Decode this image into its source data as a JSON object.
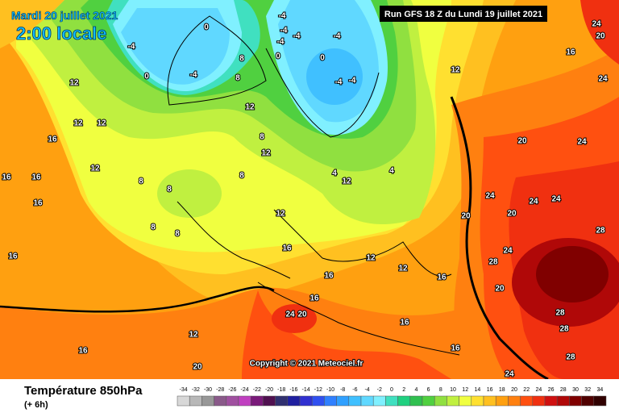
{
  "header": {
    "date": "Mardi 20 juillet 2021",
    "time": "2:00 locale",
    "run": "Run GFS 18 Z du Lundi 19 juillet 2021",
    "copyright": "Copyright © 2021 Meteociel.fr"
  },
  "legend": {
    "title": "Température 850hPa",
    "subtitle": "(+ 6h)",
    "scale": [
      -34,
      -32,
      -30,
      -28,
      -26,
      -24,
      -22,
      -20,
      -18,
      -16,
      -14,
      -12,
      -10,
      -8,
      -6,
      -4,
      -2,
      0,
      2,
      4,
      6,
      8,
      10,
      12,
      14,
      16,
      18,
      20,
      22,
      24,
      26,
      28,
      30,
      32,
      34
    ],
    "colors": [
      "#d8d8d8",
      "#b8b8b8",
      "#989898",
      "#8a5a8a",
      "#a050a0",
      "#c040c0",
      "#7a1a7a",
      "#501050",
      "#303070",
      "#2020a0",
      "#3030d0",
      "#3050f0",
      "#3080ff",
      "#30a0ff",
      "#40c0ff",
      "#60d8ff",
      "#80f0ff",
      "#40e0c0",
      "#20d080",
      "#30c050",
      "#50d040",
      "#90e040",
      "#c0f040",
      "#f0ff40",
      "#ffe030",
      "#ffc020",
      "#ffa010",
      "#ff8010",
      "#ff5010",
      "#f03010",
      "#d01010",
      "#b00808",
      "#800000",
      "#500000",
      "#300000"
    ]
  },
  "map_labels": [
    -4,
    -4,
    -4,
    -4,
    -4,
    -4,
    -4,
    -4,
    -4,
    0,
    0,
    0,
    0,
    8,
    8,
    12,
    8,
    12,
    8,
    8,
    8,
    8,
    8,
    12,
    12,
    12,
    12,
    16,
    16,
    16,
    16,
    16,
    16,
    12,
    20,
    12,
    16,
    16,
    16,
    12,
    12,
    16,
    16,
    20,
    24,
    24,
    24,
    24,
    20,
    20,
    24,
    28,
    20,
    28,
    28,
    28,
    24,
    28,
    16,
    24,
    16,
    12,
    4,
    4,
    12,
    24,
    20,
    24,
    20
  ]
}
